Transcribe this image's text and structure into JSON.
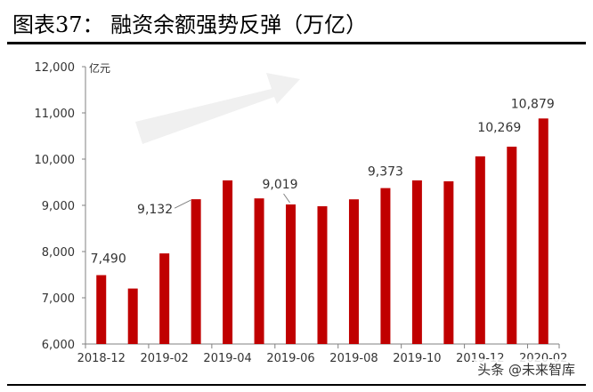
{
  "title": "图表37：  融资余额强势反弹（万亿）",
  "watermark": "头条 @未来智库",
  "chart_data": {
    "type": "bar",
    "title": "图表37：  融资余额强势反弹（万亿）",
    "unit_label": "亿元",
    "categories": [
      "2018-12",
      "2019-01",
      "2019-02",
      "2019-03",
      "2019-04",
      "2019-05",
      "2019-06",
      "2019-07",
      "2019-08",
      "2019-09",
      "2019-10",
      "2019-11",
      "2019-12",
      "2020-01",
      "2020-02"
    ],
    "x_tick_labels": [
      "2018-12",
      "2019-02",
      "2019-04",
      "2019-06",
      "2019-08",
      "2019-10",
      "2019-12",
      "2020-02"
    ],
    "values": [
      7490,
      7200,
      7960,
      9132,
      9540,
      9150,
      9019,
      8980,
      9130,
      9373,
      9540,
      9520,
      10060,
      10269,
      10879
    ],
    "data_labels": [
      {
        "index": 0,
        "text": "7,490"
      },
      {
        "index": 3,
        "text": "9,132"
      },
      {
        "index": 6,
        "text": "9,019"
      },
      {
        "index": 9,
        "text": "9,373"
      },
      {
        "index": 13,
        "text": "10,269"
      },
      {
        "index": 14,
        "text": "10,879"
      }
    ],
    "y_ticks": [
      "6,000",
      "7,000",
      "8,000",
      "9,000",
      "10,000",
      "11,000",
      "12,000"
    ],
    "ylim": [
      6000,
      12000
    ],
    "bar_color": "#c00000",
    "grid": false,
    "legend": "none"
  }
}
